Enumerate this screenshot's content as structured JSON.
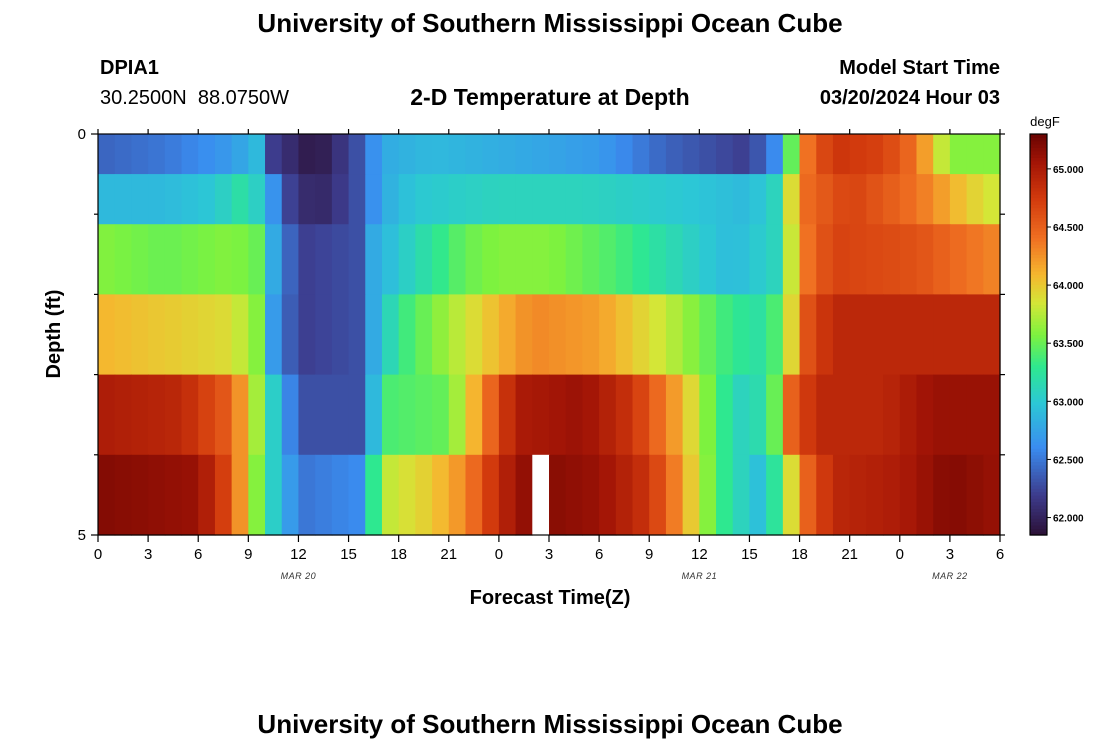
{
  "header": {
    "title": "University of Southern Mississippi Ocean Cube",
    "station_id": "DPIA1",
    "coords": "30.2500N  88.0750W",
    "subtitle": "2-D Temperature at Depth",
    "model_start_label": "Model Start Time",
    "model_start_value": "03/20/2024 Hour 03"
  },
  "footer": {
    "title": "University of Southern Mississippi Ocean Cube"
  },
  "chart_data": {
    "type": "heatmap",
    "title": "2-D Temperature at Depth",
    "xlabel": "Forecast Time(Z)",
    "ylabel": "Depth (ft)",
    "x_tick_labels": [
      "0",
      "3",
      "6",
      "9",
      "12",
      "15",
      "18",
      "21",
      "0",
      "3",
      "6",
      "9",
      "12",
      "15",
      "18",
      "21",
      "0",
      "3",
      "6"
    ],
    "date_labels": [
      {
        "label": "MAR 20",
        "hour": 12
      },
      {
        "label": "MAR 21",
        "hour": 36
      },
      {
        "label": "MAR 22",
        "hour": 51
      }
    ],
    "x_range_hours": [
      0,
      54
    ],
    "y_range_ft": [
      0,
      5
    ],
    "y_tick_labels": [
      "0",
      "5"
    ],
    "colorbar": {
      "unit": "degF",
      "range": [
        61.85,
        65.3
      ],
      "ticks": [
        "62.000",
        "62.500",
        "63.000",
        "63.500",
        "64.000",
        "64.500",
        "65.000"
      ]
    },
    "missing_hour": 26,
    "rows": [
      {
        "depth_ft": 0.25,
        "keys": [
          [
            0,
            62.4
          ],
          [
            4,
            62.5
          ],
          [
            8,
            62.7
          ],
          [
            9.5,
            62.9
          ],
          [
            10.5,
            62.2
          ],
          [
            13,
            61.9
          ],
          [
            15.5,
            62.3
          ],
          [
            17,
            62.8
          ],
          [
            20,
            62.9
          ],
          [
            25,
            62.8
          ],
          [
            30,
            62.7
          ],
          [
            34,
            62.4
          ],
          [
            39,
            62.2
          ],
          [
            40.5,
            62.6
          ],
          [
            41.3,
            63.3
          ],
          [
            42.5,
            64.4
          ],
          [
            44,
            64.8
          ],
          [
            47,
            64.7
          ],
          [
            49,
            64.4
          ],
          [
            51,
            63.6
          ],
          [
            54,
            63.6
          ]
        ]
      },
      {
        "depth_ft": 0.75,
        "keys": [
          [
            0,
            62.9
          ],
          [
            4,
            62.9
          ],
          [
            7,
            63.0
          ],
          [
            8.5,
            63.2
          ],
          [
            10,
            63.0
          ],
          [
            11,
            62.3
          ],
          [
            13,
            62.0
          ],
          [
            15.5,
            62.3
          ],
          [
            17,
            62.8
          ],
          [
            19,
            63.0
          ],
          [
            24,
            63.1
          ],
          [
            29,
            63.1
          ],
          [
            35,
            63.0
          ],
          [
            39,
            62.9
          ],
          [
            40.5,
            63.1
          ],
          [
            41.3,
            63.7
          ],
          [
            42,
            64.4
          ],
          [
            45,
            64.7
          ],
          [
            49,
            64.4
          ],
          [
            52,
            64.0
          ],
          [
            54,
            63.8
          ]
        ]
      },
      {
        "depth_ft": 1.5,
        "keys": [
          [
            0,
            63.6
          ],
          [
            4,
            63.5
          ],
          [
            8,
            63.6
          ],
          [
            9.5,
            63.5
          ],
          [
            10.5,
            62.8
          ],
          [
            12,
            62.2
          ],
          [
            15.5,
            62.3
          ],
          [
            16.5,
            62.8
          ],
          [
            18,
            63.0
          ],
          [
            22,
            63.5
          ],
          [
            24,
            63.6
          ],
          [
            27,
            63.6
          ],
          [
            31,
            63.4
          ],
          [
            35,
            63.1
          ],
          [
            38,
            62.9
          ],
          [
            40.5,
            63.1
          ],
          [
            41.3,
            63.7
          ],
          [
            42.5,
            64.4
          ],
          [
            44,
            64.7
          ],
          [
            49,
            64.6
          ],
          [
            52,
            64.4
          ],
          [
            54,
            64.3
          ]
        ]
      },
      {
        "depth_ft": 2.5,
        "keys": [
          [
            0,
            64.1
          ],
          [
            4,
            64.0
          ],
          [
            8,
            63.9
          ],
          [
            9.5,
            63.6
          ],
          [
            10.5,
            62.7
          ],
          [
            12,
            62.2
          ],
          [
            15.5,
            62.3
          ],
          [
            16.5,
            62.8
          ],
          [
            18,
            63.3
          ],
          [
            21,
            63.7
          ],
          [
            24,
            64.1
          ],
          [
            26,
            64.3
          ],
          [
            30,
            64.2
          ],
          [
            34,
            63.8
          ],
          [
            38,
            63.3
          ],
          [
            40,
            63.2
          ],
          [
            41,
            63.6
          ],
          [
            42.5,
            64.6
          ],
          [
            44,
            64.9
          ],
          [
            49,
            64.9
          ],
          [
            54,
            64.9
          ]
        ]
      },
      {
        "depth_ft": 3.5,
        "keys": [
          [
            0,
            65.0
          ],
          [
            5,
            64.9
          ],
          [
            8,
            64.5
          ],
          [
            9,
            64.0
          ],
          [
            10,
            63.4
          ],
          [
            11,
            62.7
          ],
          [
            12.5,
            62.3
          ],
          [
            15.5,
            62.3
          ],
          [
            16.5,
            62.9
          ],
          [
            17.5,
            63.4
          ],
          [
            21,
            63.5
          ],
          [
            23,
            64.3
          ],
          [
            25,
            65.0
          ],
          [
            29,
            65.1
          ],
          [
            32,
            64.8
          ],
          [
            35,
            64.1
          ],
          [
            37,
            63.4
          ],
          [
            39,
            63.0
          ],
          [
            40.5,
            63.5
          ],
          [
            41.5,
            64.5
          ],
          [
            43,
            64.9
          ],
          [
            47,
            64.9
          ],
          [
            50,
            65.1
          ],
          [
            54,
            65.1
          ]
        ]
      },
      {
        "depth_ft": 4.5,
        "keys": [
          [
            0,
            65.2
          ],
          [
            6,
            65.1
          ],
          [
            8,
            64.6
          ],
          [
            9,
            63.9
          ],
          [
            10,
            63.3
          ],
          [
            11,
            62.8
          ],
          [
            12.5,
            62.5
          ],
          [
            15.5,
            62.6
          ],
          [
            16.5,
            63.3
          ],
          [
            17.5,
            63.8
          ],
          [
            20,
            64.0
          ],
          [
            22,
            64.3
          ],
          [
            24,
            64.9
          ],
          [
            26,
            65.2
          ],
          [
            30,
            65.1
          ],
          [
            33,
            64.8
          ],
          [
            35,
            64.2
          ],
          [
            37,
            63.4
          ],
          [
            39,
            63.0
          ],
          [
            40,
            62.9
          ],
          [
            41,
            63.6
          ],
          [
            42.5,
            64.5
          ],
          [
            44,
            64.9
          ],
          [
            48,
            65.0
          ],
          [
            51,
            65.2
          ],
          [
            54,
            65.1
          ]
        ]
      }
    ]
  }
}
